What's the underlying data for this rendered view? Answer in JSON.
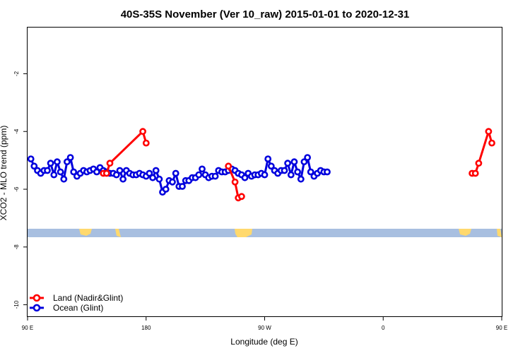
{
  "chart_data": {
    "type": "line",
    "title": "40S-35S November (Ver 10_raw)   2015-01-01 to 2020-12-31",
    "xlabel": "Longitude (deg E)",
    "ylabel": "XCO2 - MLO trend (ppm)",
    "xlim": [
      90,
      450
    ],
    "ylim": [
      -10.4,
      -0.4
    ],
    "x_ticks": [
      {
        "value": 90,
        "label": "90 E"
      },
      {
        "value": 180,
        "label": "180"
      },
      {
        "value": 270,
        "label": "90 W"
      },
      {
        "value": 360,
        "label": "0"
      },
      {
        "value": 450,
        "label": "90 E"
      },
      {
        "value": 540,
        "label": "180"
      }
    ],
    "y_ticks": [
      {
        "value": -2,
        "label": "-2"
      },
      {
        "value": -4,
        "label": "-4"
      },
      {
        "value": -6,
        "label": "-6"
      },
      {
        "value": -8,
        "label": "-8"
      },
      {
        "value": -10,
        "label": "-10"
      }
    ],
    "legend_position": "bottom-left",
    "grid": false,
    "series": [
      {
        "name": "Land (Nadir&Glint)",
        "color": "#ff0000",
        "segments": [
          [
            [
              147.5,
              -5.45
            ],
            [
              150,
              -5.45
            ],
            [
              152.5,
              -5.1
            ],
            [
              177.5,
              -4.0
            ],
            [
              180,
              -4.4
            ]
          ],
          [
            [
              242.5,
              -5.2
            ],
            [
              247.5,
              -5.75
            ],
            [
              250,
              -6.3
            ],
            [
              252.5,
              -6.25
            ]
          ],
          [
            [
              427.5,
              -5.45
            ],
            [
              430,
              -5.45
            ],
            [
              432.5,
              -5.1
            ],
            [
              440,
              -4.0
            ],
            [
              442.5,
              -4.4
            ]
          ]
        ]
      },
      {
        "name": "Ocean (Glint)",
        "color": "#0000dd",
        "segments": [
          [
            [
              92.5,
              -4.95
            ],
            [
              95,
              -5.2
            ],
            [
              97.5,
              -5.35
            ],
            [
              100,
              -5.45
            ],
            [
              102.5,
              -5.35
            ],
            [
              105,
              -5.35
            ],
            [
              107.5,
              -5.1
            ],
            [
              110,
              -5.5
            ],
            [
              112.5,
              -5.05
            ],
            [
              115,
              -5.4
            ],
            [
              117.5,
              -5.65
            ],
            [
              120,
              -5.05
            ],
            [
              122.5,
              -4.9
            ],
            [
              125,
              -5.4
            ],
            [
              127.5,
              -5.55
            ],
            [
              130,
              -5.45
            ],
            [
              132.5,
              -5.35
            ],
            [
              135,
              -5.4
            ],
            [
              137.5,
              -5.35
            ],
            [
              140,
              -5.3
            ],
            [
              142.5,
              -5.4
            ],
            [
              145,
              -5.25
            ],
            [
              147.5,
              -5.35
            ],
            [
              150,
              -5.4
            ],
            [
              152.5,
              -5.45
            ],
            [
              155,
              -5.45
            ],
            [
              157.5,
              -5.5
            ],
            [
              160,
              -5.35
            ],
            [
              162.5,
              -5.65
            ],
            [
              165,
              -5.35
            ],
            [
              167.5,
              -5.45
            ],
            [
              170,
              -5.5
            ],
            [
              172.5,
              -5.5
            ],
            [
              175,
              -5.45
            ],
            [
              177.5,
              -5.5
            ],
            [
              180,
              -5.55
            ],
            [
              182.5,
              -5.45
            ],
            [
              185,
              -5.6
            ],
            [
              187.5,
              -5.35
            ],
            [
              190,
              -5.65
            ],
            [
              192.5,
              -6.1
            ],
            [
              195,
              -6.0
            ],
            [
              197.5,
              -5.7
            ],
            [
              200,
              -5.75
            ],
            [
              202.5,
              -5.45
            ],
            [
              205,
              -5.9
            ],
            [
              207.5,
              -5.9
            ],
            [
              210,
              -5.7
            ],
            [
              212.5,
              -5.7
            ],
            [
              215,
              -5.6
            ],
            [
              217.5,
              -5.6
            ],
            [
              220,
              -5.5
            ],
            [
              222.5,
              -5.3
            ],
            [
              225,
              -5.5
            ],
            [
              227.5,
              -5.6
            ],
            [
              230,
              -5.55
            ],
            [
              232.5,
              -5.55
            ],
            [
              235,
              -5.35
            ],
            [
              237.5,
              -5.4
            ],
            [
              240,
              -5.4
            ],
            [
              242.5,
              -5.35
            ],
            [
              245,
              -5.3
            ],
            [
              247.5,
              -5.35
            ],
            [
              250,
              -5.45
            ],
            [
              252.5,
              -5.5
            ],
            [
              255,
              -5.6
            ],
            [
              257.5,
              -5.45
            ],
            [
              260,
              -5.55
            ],
            [
              262.5,
              -5.5
            ],
            [
              265,
              -5.5
            ],
            [
              267.5,
              -5.45
            ],
            [
              270,
              -5.5
            ],
            [
              272.5,
              -4.95
            ],
            [
              275,
              -5.2
            ],
            [
              277.5,
              -5.35
            ],
            [
              280,
              -5.45
            ],
            [
              282.5,
              -5.35
            ],
            [
              285,
              -5.35
            ],
            [
              287.5,
              -5.1
            ],
            [
              290,
              -5.5
            ],
            [
              292.5,
              -5.05
            ],
            [
              295,
              -5.4
            ],
            [
              297.5,
              -5.65
            ],
            [
              300,
              -5.05
            ],
            [
              302.5,
              -4.9
            ],
            [
              305,
              -5.4
            ],
            [
              307.5,
              -5.55
            ],
            [
              310,
              -5.45
            ],
            [
              312.5,
              -5.35
            ],
            [
              315,
              -5.4
            ],
            [
              317.5,
              -5.4
            ]
          ]
        ]
      }
    ],
    "land_bar": {
      "y_range": [
        -7.8,
        -7.5
      ],
      "ocean_color": "#a8bfe0",
      "land_color": "#ffd96e"
    }
  }
}
